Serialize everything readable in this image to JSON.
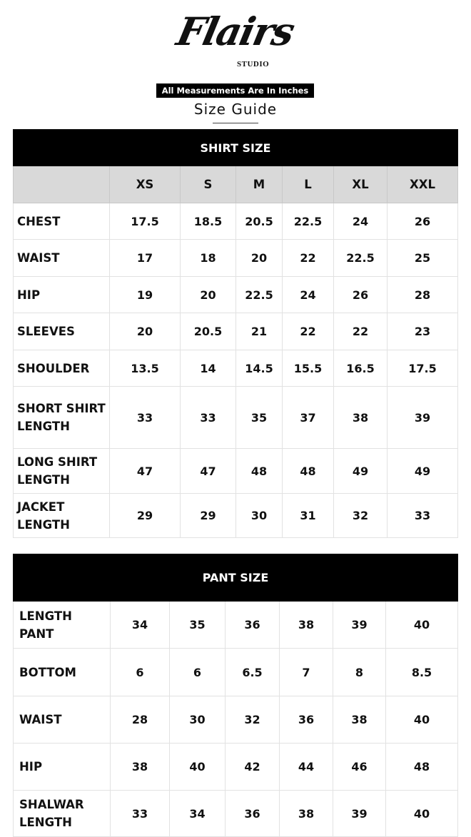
{
  "brand": {
    "name": "Flairs",
    "sub": "STUDIO"
  },
  "note": "All Measurements Are In Inches",
  "title": "Size Guide",
  "shirt": {
    "title": "SHIRT SIZE",
    "sizes": [
      "XS",
      "S",
      "M",
      "L",
      "XL",
      "XXL"
    ],
    "rows": [
      {
        "label": "CHEST",
        "values": [
          "17.5",
          "18.5",
          "20.5",
          "22.5",
          "24",
          "26"
        ]
      },
      {
        "label": "WAIST",
        "values": [
          "17",
          "18",
          "20",
          "22",
          "22.5",
          "25"
        ]
      },
      {
        "label": "HIP",
        "values": [
          "19",
          "20",
          "22.5",
          "24",
          "26",
          "28"
        ]
      },
      {
        "label": "SLEEVES",
        "values": [
          "20",
          "20.5",
          "21",
          "22",
          "22",
          "23"
        ]
      },
      {
        "label": "SHOULDER",
        "values": [
          "13.5",
          "14",
          "14.5",
          "15.5",
          "16.5",
          "17.5"
        ]
      },
      {
        "label": "SHORT SHIRT LENGTH",
        "values": [
          "33",
          "33",
          "35",
          "37",
          "38",
          "39"
        ]
      },
      {
        "label": "LONG SHIRT LENGTH",
        "values": [
          "47",
          "47",
          "48",
          "48",
          "49",
          "49"
        ]
      },
      {
        "label": "JACKET LENGTH",
        "values": [
          "29",
          "29",
          "30",
          "31",
          "32",
          "33"
        ]
      }
    ]
  },
  "pant": {
    "title": "PANT SIZE",
    "rows": [
      {
        "label": "LENGTH PANT",
        "values": [
          "34",
          "35",
          "36",
          "38",
          "39",
          "40"
        ]
      },
      {
        "label": "BOTTOM",
        "values": [
          "6",
          "6",
          "6.5",
          "7",
          "8",
          "8.5"
        ]
      },
      {
        "label": "WAIST",
        "values": [
          "28",
          "30",
          "32",
          "36",
          "38",
          "40"
        ]
      },
      {
        "label": "HIP",
        "values": [
          "38",
          "40",
          "42",
          "44",
          "46",
          "48"
        ]
      },
      {
        "label": "SHALWAR LENGTH",
        "values": [
          "33",
          "34",
          "36",
          "38",
          "39",
          "40"
        ]
      }
    ]
  }
}
